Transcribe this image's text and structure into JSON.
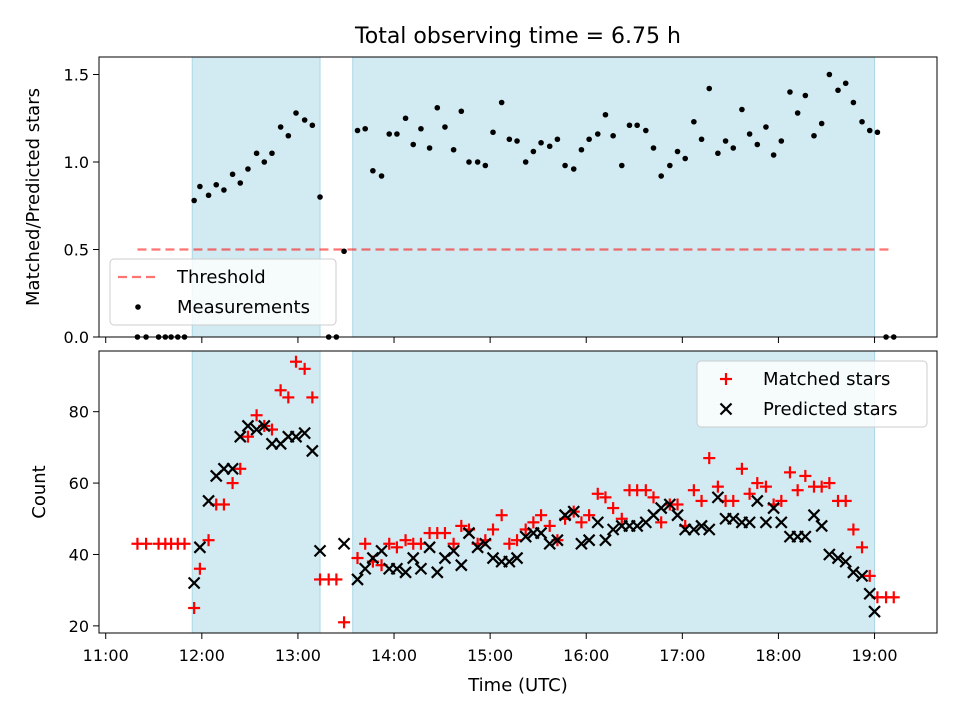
{
  "title": "Total observing time = 6.75 h",
  "colors": {
    "shade": "#add8e6",
    "threshold": "#ff0000",
    "measurements": "#000000",
    "matched": "#ff0000",
    "predicted": "#000000"
  },
  "chart_data": [
    {
      "type": "scatter",
      "panel": "top",
      "ylabel": "Matched/Predicted stars",
      "ylim": [
        0,
        1.6
      ],
      "xlim": [
        10.93,
        19.65
      ],
      "y_ticks": [
        0.0,
        0.5,
        1.0,
        1.5
      ],
      "y_tick_labels": [
        "0.0",
        "0.5",
        "1.0",
        "1.5"
      ],
      "shaded_intervals": [
        [
          11.9,
          13.23
        ],
        [
          13.57,
          19.0
        ]
      ],
      "legend": {
        "position": "lower-left",
        "entries": [
          "Threshold",
          "Measurements"
        ]
      },
      "series": [
        {
          "name": "Threshold",
          "style": "dashed-line",
          "x": [
            11.33,
            19.18
          ],
          "y": [
            0.5,
            0.5
          ]
        },
        {
          "name": "Measurements",
          "style": "dot",
          "x": [
            11.33,
            11.42,
            11.55,
            11.62,
            11.68,
            11.75,
            11.82,
            11.92,
            11.98,
            12.07,
            12.15,
            12.23,
            12.32,
            12.4,
            12.48,
            12.57,
            12.65,
            12.73,
            12.82,
            12.9,
            12.98,
            13.07,
            13.15,
            13.23,
            13.32,
            13.4,
            13.48,
            13.62,
            13.7,
            13.78,
            13.87,
            13.95,
            14.03,
            14.12,
            14.2,
            14.28,
            14.37,
            14.45,
            14.53,
            14.62,
            14.7,
            14.78,
            14.87,
            14.95,
            15.03,
            15.12,
            15.2,
            15.28,
            15.37,
            15.45,
            15.53,
            15.62,
            15.7,
            15.78,
            15.87,
            15.95,
            16.03,
            16.12,
            16.2,
            16.28,
            16.37,
            16.45,
            16.53,
            16.62,
            16.7,
            16.78,
            16.87,
            16.95,
            17.03,
            17.12,
            17.2,
            17.28,
            17.37,
            17.45,
            17.53,
            17.62,
            17.7,
            17.78,
            17.87,
            17.95,
            18.03,
            18.12,
            18.2,
            18.28,
            18.37,
            18.45,
            18.53,
            18.62,
            18.7,
            18.78,
            18.87,
            18.95,
            19.03,
            19.12,
            19.2
          ],
          "y": [
            0,
            0,
            0,
            0,
            0,
            0,
            0,
            0.78,
            0.86,
            0.81,
            0.87,
            0.84,
            0.93,
            0.88,
            0.96,
            1.05,
            1.0,
            1.05,
            1.2,
            1.15,
            1.28,
            1.24,
            1.21,
            0.8,
            0,
            0,
            0.49,
            1.18,
            1.19,
            0.95,
            0.92,
            1.16,
            1.16,
            1.25,
            1.1,
            1.19,
            1.08,
            1.31,
            1.2,
            1.07,
            1.29,
            1.0,
            1.0,
            0.98,
            1.17,
            1.34,
            1.13,
            1.12,
            1.0,
            1.06,
            1.11,
            1.09,
            1.13,
            0.98,
            0.96,
            1.07,
            1.13,
            1.16,
            1.27,
            1.15,
            0.98,
            1.21,
            1.21,
            1.18,
            1.08,
            0.92,
            0.98,
            1.06,
            1.02,
            1.23,
            1.13,
            1.42,
            1.05,
            1.12,
            1.08,
            1.3,
            1.16,
            1.1,
            1.2,
            1.04,
            1.12,
            1.4,
            1.28,
            1.38,
            1.15,
            1.22,
            1.5,
            1.41,
            1.45,
            1.34,
            1.23,
            1.18,
            1.17,
            0,
            0
          ]
        }
      ]
    },
    {
      "type": "scatter",
      "panel": "bottom",
      "xlabel": "Time (UTC)",
      "ylabel": "Count",
      "ylim": [
        18,
        97
      ],
      "xlim": [
        10.93,
        19.65
      ],
      "x_ticks": [
        11,
        12,
        13,
        14,
        15,
        16,
        17,
        18,
        19
      ],
      "x_tick_labels": [
        "11:00",
        "12:00",
        "13:00",
        "14:00",
        "15:00",
        "16:00",
        "17:00",
        "18:00",
        "19:00"
      ],
      "y_ticks": [
        20,
        40,
        60,
        80
      ],
      "y_tick_labels": [
        "20",
        "40",
        "60",
        "80"
      ],
      "shaded_intervals": [
        [
          11.9,
          13.23
        ],
        [
          13.57,
          19.0
        ]
      ],
      "legend": {
        "position": "upper-right",
        "entries": [
          "Matched stars",
          "Predicted stars"
        ]
      },
      "series": [
        {
          "name": "Matched stars",
          "style": "plus",
          "x": [
            11.33,
            11.42,
            11.55,
            11.62,
            11.68,
            11.75,
            11.82,
            11.92,
            11.98,
            12.07,
            12.15,
            12.23,
            12.32,
            12.4,
            12.48,
            12.57,
            12.65,
            12.73,
            12.82,
            12.9,
            12.98,
            13.07,
            13.15,
            13.23,
            13.32,
            13.4,
            13.48,
            13.62,
            13.7,
            13.78,
            13.87,
            13.95,
            14.03,
            14.12,
            14.2,
            14.28,
            14.37,
            14.45,
            14.53,
            14.62,
            14.7,
            14.78,
            14.87,
            14.95,
            15.03,
            15.12,
            15.2,
            15.28,
            15.37,
            15.45,
            15.53,
            15.62,
            15.7,
            15.78,
            15.87,
            15.95,
            16.03,
            16.12,
            16.2,
            16.28,
            16.37,
            16.45,
            16.53,
            16.62,
            16.7,
            16.78,
            16.87,
            16.95,
            17.03,
            17.12,
            17.2,
            17.28,
            17.37,
            17.45,
            17.53,
            17.62,
            17.7,
            17.78,
            17.87,
            17.95,
            18.03,
            18.12,
            18.2,
            18.28,
            18.37,
            18.45,
            18.53,
            18.62,
            18.7,
            18.78,
            18.87,
            18.95,
            19.03,
            19.12,
            19.2
          ],
          "y": [
            43,
            43,
            43,
            43,
            43,
            43,
            43,
            25,
            36,
            44,
            54,
            54,
            60,
            64,
            73,
            79,
            76,
            75,
            86,
            84,
            94,
            92,
            84,
            33,
            33,
            33,
            21,
            39,
            43,
            38,
            37,
            43,
            42,
            44,
            43,
            43,
            46,
            46,
            46,
            43,
            48,
            47,
            43,
            44,
            47,
            51,
            43,
            44,
            47,
            49,
            51,
            48,
            44,
            50,
            52,
            49,
            51,
            57,
            56,
            53,
            50,
            58,
            58,
            58,
            56,
            49,
            54,
            54,
            48,
            58,
            55,
            67,
            59,
            55,
            55,
            64,
            57,
            60,
            59,
            54,
            55,
            63,
            58,
            62,
            59,
            59,
            60,
            55,
            55,
            47,
            42,
            34,
            28,
            28,
            28
          ]
        },
        {
          "name": "Predicted stars",
          "style": "x",
          "x": [
            11.92,
            11.98,
            12.07,
            12.15,
            12.23,
            12.32,
            12.4,
            12.48,
            12.57,
            12.65,
            12.73,
            12.82,
            12.9,
            12.98,
            13.07,
            13.15,
            13.23,
            13.48,
            13.62,
            13.7,
            13.78,
            13.87,
            13.95,
            14.03,
            14.12,
            14.2,
            14.28,
            14.37,
            14.45,
            14.53,
            14.62,
            14.7,
            14.78,
            14.87,
            14.95,
            15.03,
            15.12,
            15.2,
            15.28,
            15.37,
            15.45,
            15.53,
            15.62,
            15.7,
            15.78,
            15.87,
            15.95,
            16.03,
            16.12,
            16.2,
            16.28,
            16.37,
            16.45,
            16.53,
            16.62,
            16.7,
            16.78,
            16.87,
            16.95,
            17.03,
            17.12,
            17.2,
            17.28,
            17.37,
            17.45,
            17.53,
            17.62,
            17.7,
            17.78,
            17.87,
            17.95,
            18.03,
            18.12,
            18.2,
            18.28,
            18.37,
            18.45,
            18.53,
            18.62,
            18.7,
            18.78,
            18.87,
            18.95,
            19.0
          ],
          "y": [
            32,
            42,
            55,
            62,
            64,
            64,
            73,
            76,
            75,
            76,
            71,
            71,
            73,
            73,
            74,
            69,
            41,
            43,
            33,
            36,
            39,
            41,
            36,
            36,
            35,
            39,
            36,
            42,
            35,
            39,
            41,
            37,
            46,
            42,
            43,
            39,
            38,
            38,
            39,
            45,
            46,
            46,
            43,
            44,
            51,
            52,
            43,
            44,
            49,
            44,
            47,
            48,
            48,
            48,
            49,
            51,
            53,
            54,
            51,
            47,
            47,
            48,
            47,
            56,
            50,
            50,
            49,
            49,
            55,
            49,
            53,
            49,
            45,
            45,
            45,
            51,
            48,
            40,
            39,
            38,
            35,
            34,
            29,
            24
          ]
        }
      ]
    }
  ]
}
